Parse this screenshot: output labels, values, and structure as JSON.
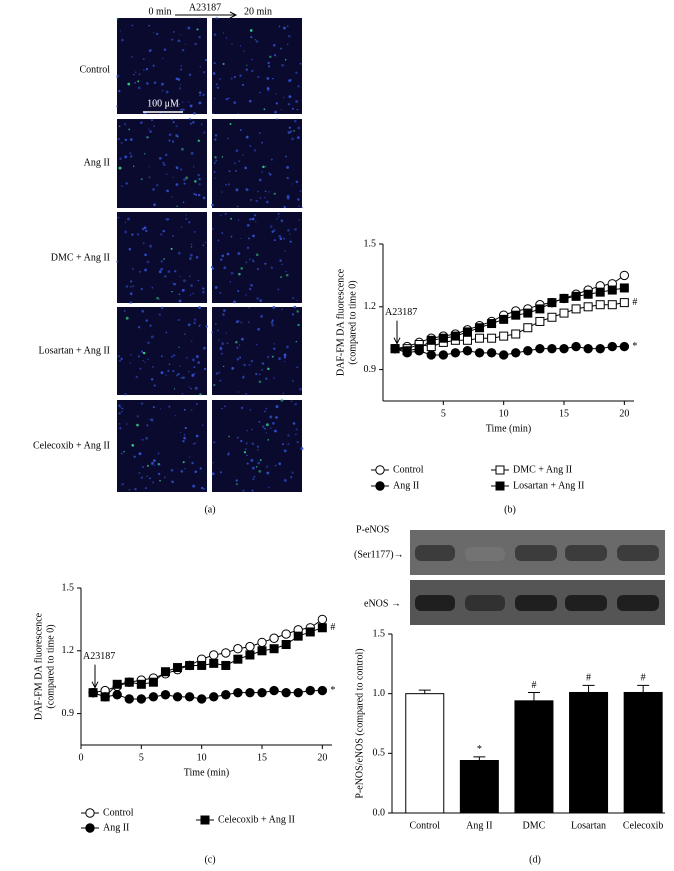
{
  "figure_a": {
    "columns": [
      "0 min",
      "A23187",
      "20 min"
    ],
    "rows": [
      "Control",
      "Ang II",
      "DMC + Ang II",
      "Losartan + Ang II",
      "Celecoxib + Ang II"
    ],
    "scale_bar": "100 μM",
    "panel_label": "(a)"
  },
  "chart_data": [
    {
      "type": "line",
      "panel_label": "(b)",
      "xlabel": "Time (min)",
      "ylabel": [
        "DAF-FM DA fluorescence",
        "(compared to time 0)"
      ],
      "annotation": "A23187",
      "x": [
        1,
        2,
        3,
        4,
        5,
        6,
        7,
        8,
        9,
        10,
        11,
        12,
        13,
        14,
        15,
        16,
        17,
        18,
        19,
        20
      ],
      "xlim": [
        0,
        20.8
      ],
      "xticks": [
        5,
        10,
        15,
        20
      ],
      "ylim": [
        0.75,
        1.5
      ],
      "yticks": [
        0.9,
        1.2,
        1.5
      ],
      "series": [
        {
          "name": "Control",
          "color": "#000000",
          "marker": "circle",
          "marker_fill": "#ffffff",
          "values": [
            1.0,
            1.01,
            1.03,
            1.05,
            1.06,
            1.07,
            1.09,
            1.11,
            1.13,
            1.16,
            1.18,
            1.19,
            1.21,
            1.22,
            1.24,
            1.26,
            1.28,
            1.3,
            1.31,
            1.35
          ]
        },
        {
          "name": "Ang II",
          "color": "#000000",
          "marker": "circle",
          "marker_fill": "#000000",
          "end_label": "*",
          "values": [
            1.0,
            0.98,
            0.99,
            0.97,
            0.97,
            0.98,
            0.99,
            0.98,
            0.98,
            0.97,
            0.98,
            0.99,
            1.0,
            1.0,
            1.0,
            1.01,
            1.0,
            1.0,
            1.01,
            1.01
          ]
        },
        {
          "name": "DMC + Ang II",
          "color": "#000000",
          "marker": "square",
          "marker_fill": "#ffffff",
          "end_label": "#",
          "values": [
            1.0,
            1.0,
            1.02,
            1.01,
            1.03,
            1.04,
            1.04,
            1.05,
            1.05,
            1.06,
            1.07,
            1.1,
            1.13,
            1.15,
            1.17,
            1.19,
            1.2,
            1.21,
            1.21,
            1.22
          ]
        },
        {
          "name": "Losartan + Ang II",
          "color": "#000000",
          "marker": "square",
          "marker_fill": "#000000",
          "values": [
            1.0,
            0.99,
            1.0,
            1.04,
            1.05,
            1.06,
            1.08,
            1.1,
            1.12,
            1.14,
            1.16,
            1.17,
            1.19,
            1.22,
            1.24,
            1.25,
            1.26,
            1.27,
            1.28,
            1.29
          ]
        }
      ]
    },
    {
      "type": "line",
      "panel_label": "(c)",
      "xlabel": "Time (min)",
      "ylabel": [
        "DAF-FM DA fluorescence",
        "(compared to time 0)"
      ],
      "annotation": "A23187",
      "x": [
        1,
        2,
        3,
        4,
        5,
        6,
        7,
        8,
        9,
        10,
        11,
        12,
        13,
        14,
        15,
        16,
        17,
        18,
        19,
        20
      ],
      "xlim": [
        0,
        20.8
      ],
      "xticks": [
        0,
        5,
        10,
        15,
        20
      ],
      "ylim": [
        0.75,
        1.5
      ],
      "yticks": [
        0.9,
        1.2,
        1.5
      ],
      "series": [
        {
          "name": "Control",
          "color": "#000000",
          "marker": "circle",
          "marker_fill": "#ffffff",
          "values": [
            1.0,
            1.01,
            1.03,
            1.05,
            1.06,
            1.07,
            1.09,
            1.11,
            1.13,
            1.16,
            1.18,
            1.19,
            1.21,
            1.22,
            1.24,
            1.26,
            1.28,
            1.3,
            1.31,
            1.35
          ]
        },
        {
          "name": "Ang II",
          "color": "#000000",
          "marker": "circle",
          "marker_fill": "#000000",
          "end_label": "*",
          "values": [
            1.0,
            0.98,
            0.99,
            0.97,
            0.97,
            0.98,
            0.99,
            0.98,
            0.98,
            0.97,
            0.98,
            0.99,
            1.0,
            1.0,
            1.0,
            1.01,
            1.0,
            1.0,
            1.01,
            1.01
          ]
        },
        {
          "name": "Celecoxib + Ang II",
          "color": "#000000",
          "marker": "square",
          "marker_fill": "#000000",
          "end_label": "#",
          "values": [
            1.0,
            0.98,
            1.04,
            1.05,
            1.04,
            1.05,
            1.1,
            1.12,
            1.13,
            1.13,
            1.14,
            1.13,
            1.16,
            1.18,
            1.2,
            1.21,
            1.23,
            1.27,
            1.29,
            1.31
          ]
        }
      ]
    },
    {
      "type": "bar",
      "panel_label": "(d)",
      "ylabel": "P-eNOS/eNOS (compared to control)",
      "blot_labels": [
        "P-eNOS",
        "(Ser1177)→",
        "eNOS →"
      ],
      "categories": [
        "Control",
        "Ang II",
        "DMC",
        "Losartan",
        "Celecoxib"
      ],
      "values": [
        1.0,
        0.44,
        0.94,
        1.01,
        1.01
      ],
      "errors": [
        0.03,
        0.03,
        0.07,
        0.06,
        0.06
      ],
      "significance": [
        null,
        "*",
        "#",
        "#",
        "#"
      ],
      "colors": [
        "#ffffff",
        "#000000",
        "#000000",
        "#000000",
        "#000000"
      ],
      "ylim": [
        0,
        1.5
      ],
      "yticks": [
        {
          "value": 0,
          "label": "0.0"
        },
        {
          "value": 0.5,
          "label": "0.5"
        },
        {
          "value": 1,
          "label": "1.0"
        },
        {
          "value": 1.5,
          "label": "1.5"
        }
      ]
    }
  ]
}
